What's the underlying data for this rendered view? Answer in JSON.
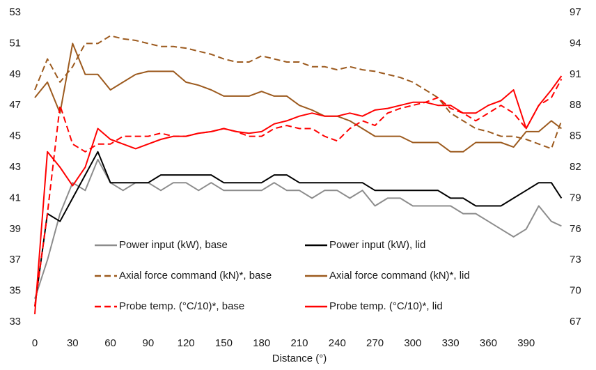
{
  "chart_data": {
    "type": "line",
    "x_label": "Distance (°)",
    "x": [
      0,
      10,
      20,
      30,
      40,
      50,
      60,
      70,
      80,
      90,
      100,
      110,
      120,
      130,
      140,
      150,
      160,
      170,
      180,
      190,
      200,
      210,
      220,
      230,
      240,
      250,
      260,
      270,
      280,
      290,
      300,
      310,
      320,
      330,
      340,
      350,
      360,
      370,
      380,
      390,
      400,
      410,
      418
    ],
    "xlim": [
      0,
      420
    ],
    "xticks": [
      0,
      30,
      60,
      90,
      120,
      150,
      180,
      210,
      240,
      270,
      300,
      330,
      360,
      390
    ],
    "ylim": [
      33,
      53
    ],
    "yticks": [
      33,
      35,
      37,
      39,
      41,
      43,
      45,
      47,
      49,
      51,
      53
    ],
    "y2lim": [
      67,
      97
    ],
    "y2ticks": [
      67,
      70,
      73,
      76,
      79,
      82,
      85,
      88,
      91,
      94,
      97
    ],
    "grid": false,
    "series": [
      {
        "name": "Power input (kW), base",
        "color": "#8c8c8c",
        "style": "solid",
        "values": [
          34.5,
          37,
          40,
          42,
          41.5,
          43.5,
          42,
          41.5,
          42,
          42,
          41.5,
          42,
          42,
          41.5,
          42,
          41.5,
          41.5,
          41.5,
          41.5,
          42,
          41.5,
          41.5,
          41,
          41.5,
          41.5,
          41,
          41.5,
          40.5,
          41,
          41,
          40.5,
          40.5,
          40.5,
          40.5,
          40,
          40,
          39.5,
          39,
          38.5,
          39,
          40.5,
          39.5,
          39.2
        ]
      },
      {
        "name": "Power input (kW), lid",
        "color": "#000000",
        "style": "solid",
        "values": [
          34,
          40,
          39.5,
          41,
          42.5,
          44,
          42,
          42,
          42,
          42,
          42.5,
          42.5,
          42.5,
          42.5,
          42.5,
          42,
          42,
          42,
          42,
          42.5,
          42.5,
          42,
          42,
          42,
          42,
          42,
          42,
          41.5,
          41.5,
          41.5,
          41.5,
          41.5,
          41.5,
          41,
          41,
          40.5,
          40.5,
          40.5,
          41,
          41.5,
          42,
          42,
          41
        ]
      },
      {
        "name": "Axial force command (kN)*, base",
        "color": "#9c5a1e",
        "style": "dashed",
        "axis": "y2",
        "values": [
          89.5,
          92.5,
          90.25,
          91.75,
          94,
          94,
          94.75,
          94.45,
          94.3,
          94,
          93.7,
          93.7,
          93.55,
          93.25,
          92.95,
          92.5,
          92.2,
          92.2,
          92.8,
          92.5,
          92.2,
          92.2,
          91.75,
          91.75,
          91.45,
          91.75,
          91.45,
          91.3,
          91,
          90.7,
          90.25,
          89.5,
          88.75,
          87.25,
          86.5,
          85.75,
          85.45,
          85,
          85,
          84.7,
          84.25,
          83.8,
          86.5
        ]
      },
      {
        "name": "Axial force command (kN)*, lid",
        "color": "#9c5a1e",
        "style": "solid",
        "axis": "y2",
        "values": [
          88.75,
          90.25,
          87.25,
          94,
          91,
          91,
          89.5,
          90.25,
          91,
          91.3,
          91.3,
          91.3,
          90.25,
          89.95,
          89.5,
          88.9,
          88.9,
          88.9,
          89.35,
          88.9,
          88.9,
          88,
          87.55,
          86.95,
          86.95,
          86.5,
          85.75,
          85,
          85,
          85,
          84.4,
          84.4,
          84.4,
          83.5,
          83.5,
          84.4,
          84.4,
          84.4,
          83.95,
          85.45,
          85.45,
          86.5,
          85.75
        ]
      },
      {
        "name": "Probe temp. (°C/10)*, base",
        "color": "#ff0000",
        "style": "dashed",
        "axis": "y2",
        "values": [
          68.5,
          77.5,
          88,
          84.25,
          83.5,
          84.25,
          84.25,
          85,
          85,
          85,
          85.3,
          85,
          85,
          85.3,
          85.45,
          85.75,
          85.45,
          85,
          85,
          85.75,
          86.05,
          85.75,
          85.75,
          85,
          84.55,
          85.75,
          86.5,
          86.05,
          87.25,
          87.7,
          88,
          88.3,
          88.75,
          87.7,
          87.25,
          86.5,
          87.25,
          88,
          87.25,
          85.75,
          88,
          88.75,
          90.55
        ]
      },
      {
        "name": "Probe temp. (°C/10)*, lid",
        "color": "#ff0000",
        "style": "solid",
        "axis": "y2",
        "values": [
          67.75,
          83.5,
          82,
          80.2,
          82,
          85.75,
          84.7,
          84.25,
          83.8,
          84.25,
          84.7,
          85,
          85,
          85.3,
          85.45,
          85.75,
          85.45,
          85.3,
          85.45,
          86.2,
          86.5,
          86.95,
          87.25,
          86.95,
          86.95,
          87.25,
          86.95,
          87.55,
          87.7,
          88,
          88.3,
          88.3,
          88,
          88,
          87.25,
          87.25,
          88,
          88.45,
          89.5,
          85.75,
          88,
          89.5,
          90.85
        ]
      }
    ]
  }
}
